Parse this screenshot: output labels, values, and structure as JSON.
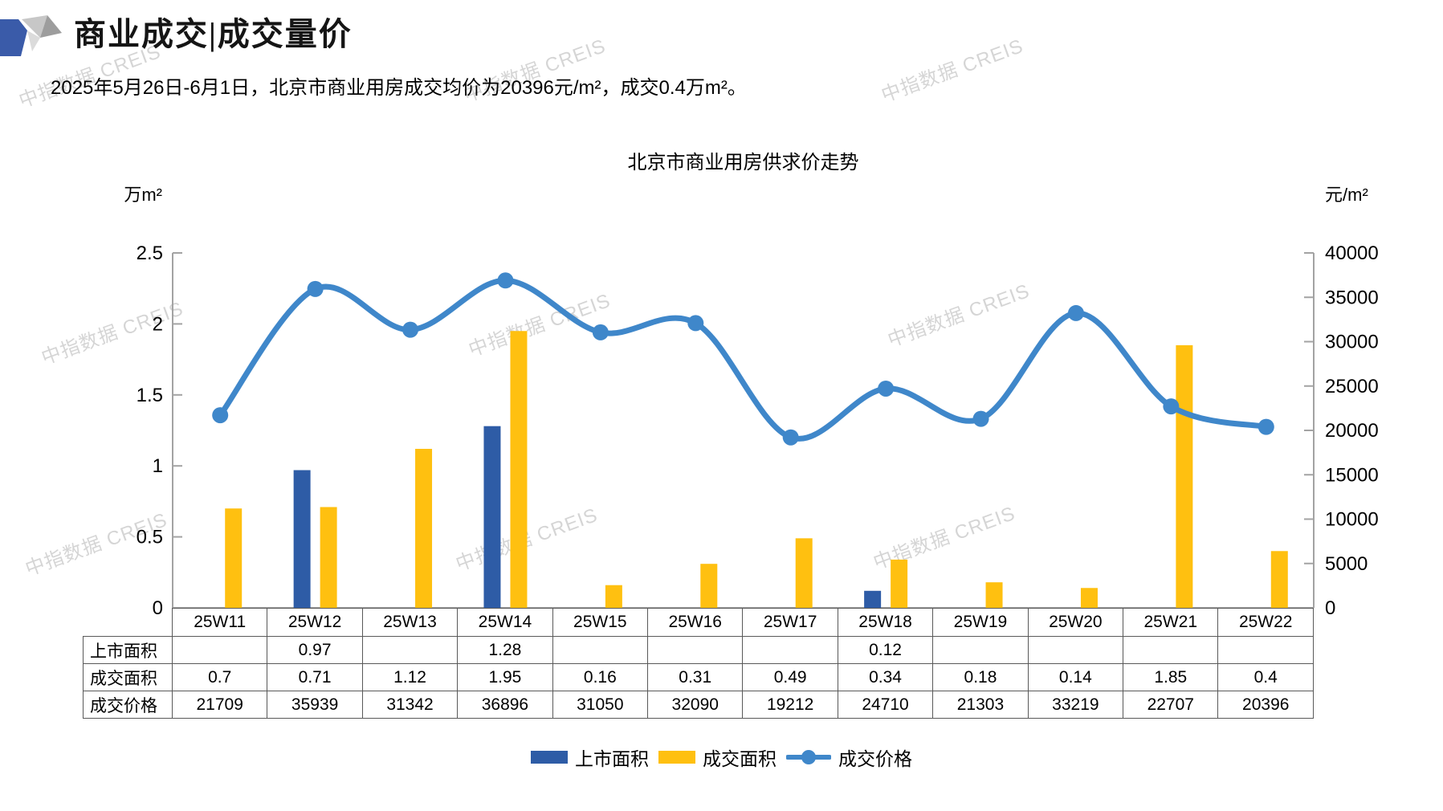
{
  "page": {
    "title": "商业成交|成交量价",
    "subtitle": "2025年5月26日-6月1日，北京市商业用房成交均价为20396元/m²，成交0.4万m²。",
    "watermark_text": "中指数据 CREIS"
  },
  "chart_data": {
    "type": "bar",
    "subtype": "bar-line-combo",
    "title": "北京市商业用房供求价走势",
    "categories": [
      "25W11",
      "25W12",
      "25W13",
      "25W14",
      "25W15",
      "25W16",
      "25W17",
      "25W18",
      "25W19",
      "25W20",
      "25W21",
      "25W22"
    ],
    "series": [
      {
        "key": "listed_area",
        "name": "上市面积",
        "type": "bar",
        "axis": "left",
        "color": "#2E5CA6",
        "values": [
          null,
          0.97,
          null,
          1.28,
          null,
          null,
          null,
          0.12,
          null,
          null,
          null,
          null
        ]
      },
      {
        "key": "sold_area",
        "name": "成交面积",
        "type": "bar",
        "axis": "left",
        "color": "#FFC010",
        "values": [
          0.7,
          0.71,
          1.12,
          1.95,
          0.16,
          0.31,
          0.49,
          0.34,
          0.18,
          0.14,
          1.85,
          0.4
        ]
      },
      {
        "key": "price",
        "name": "成交价格",
        "type": "line",
        "axis": "right",
        "color": "#3F87CA",
        "values": [
          21709,
          35939,
          31342,
          36896,
          31050,
          32090,
          19212,
          24710,
          21303,
          33219,
          22707,
          20396
        ]
      }
    ],
    "left_axis": {
      "label": "万m²",
      "min": 0,
      "max": 2.5,
      "ticks": [
        0,
        0.5,
        1,
        1.5,
        2,
        2.5
      ]
    },
    "right_axis": {
      "label": "元/m²",
      "min": 0,
      "max": 40000,
      "ticks": [
        0,
        5000,
        10000,
        15000,
        20000,
        25000,
        30000,
        35000,
        40000
      ]
    },
    "legend_position": "bottom",
    "grid": false
  },
  "table": {
    "corner": "",
    "columns": [
      "25W11",
      "25W12",
      "25W13",
      "25W14",
      "25W15",
      "25W16",
      "25W17",
      "25W18",
      "25W19",
      "25W20",
      "25W21",
      "25W22"
    ],
    "rows": [
      {
        "key": "listed_area",
        "label": "上市面积",
        "values": [
          "",
          "0.97",
          "",
          "1.28",
          "",
          "",
          "",
          "0.12",
          "",
          "",
          "",
          ""
        ]
      },
      {
        "key": "sold_area",
        "label": "成交面积",
        "values": [
          "0.7",
          "0.71",
          "1.12",
          "1.95",
          "0.16",
          "0.31",
          "0.49",
          "0.34",
          "0.18",
          "0.14",
          "1.85",
          "0.4"
        ]
      },
      {
        "key": "price",
        "label": "成交价格",
        "values": [
          "21709",
          "35939",
          "31342",
          "36896",
          "31050",
          "32090",
          "19212",
          "24710",
          "21303",
          "33219",
          "22707",
          "20396"
        ]
      }
    ]
  }
}
